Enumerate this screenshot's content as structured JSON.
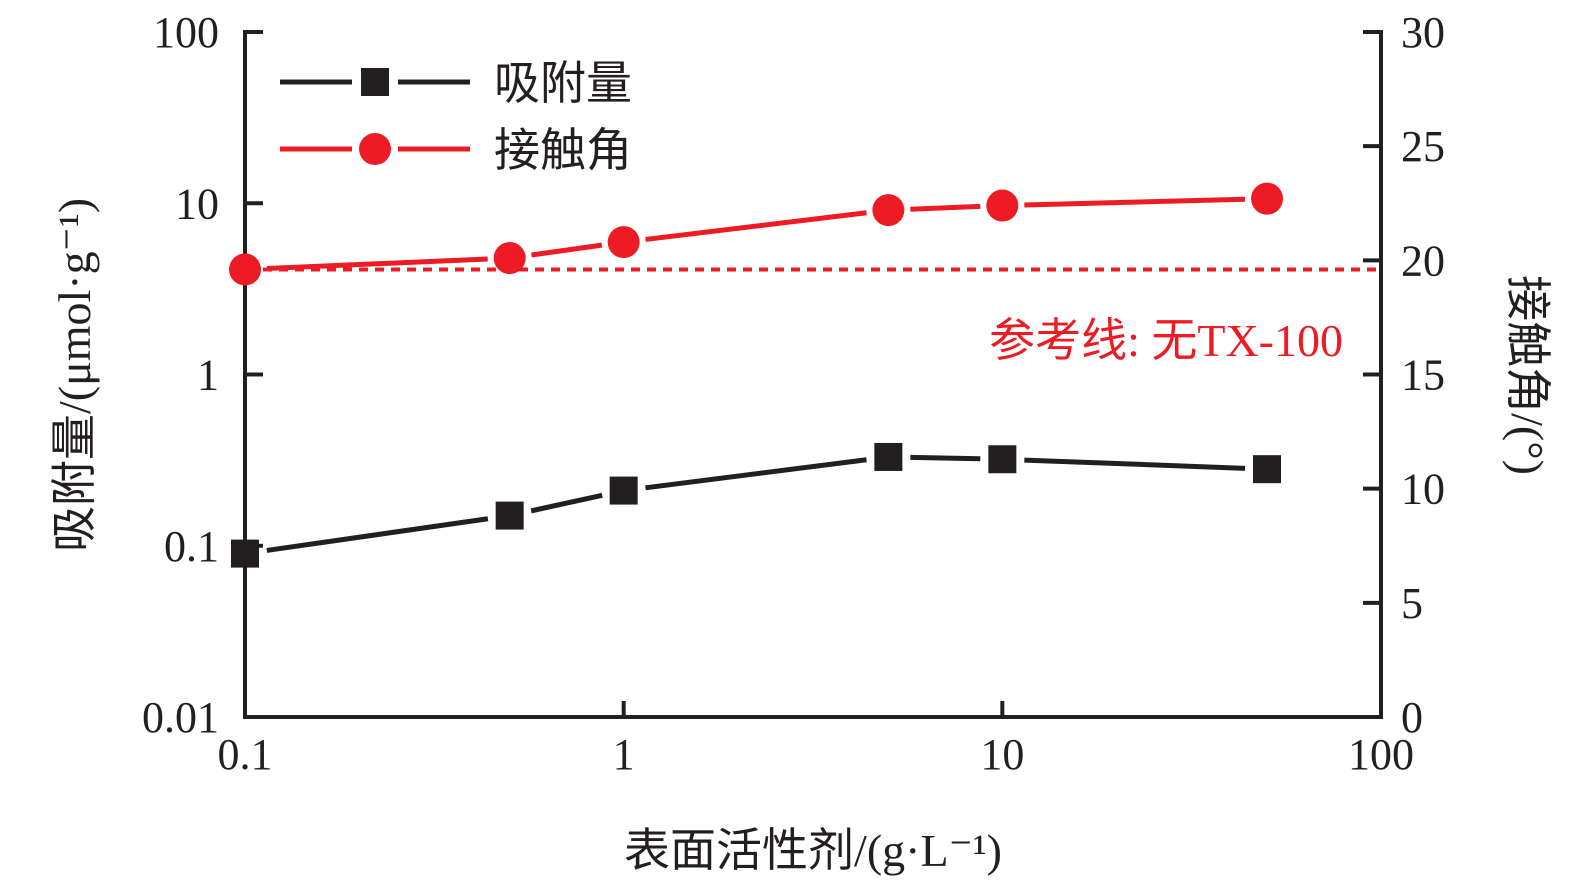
{
  "chart_data": {
    "type": "line",
    "title": "",
    "xlabel": "表面活性剂/(g·L⁻¹)",
    "ylabel_left": "吸附量/(μmol·g⁻¹)",
    "ylabel_right": "接触角/(°)",
    "xscale": "log",
    "xlim": [
      0.1,
      100
    ],
    "ylim_left": [
      0.01,
      100
    ],
    "yscale_left": "log",
    "ylim_right": [
      0,
      30
    ],
    "x_ticks": [
      "0.1",
      "1",
      "10",
      "100"
    ],
    "y_left_ticks": [
      "0.01",
      "0.1",
      "1",
      "10",
      "100"
    ],
    "y_right_ticks": [
      "0",
      "5",
      "10",
      "15",
      "20",
      "25",
      "30"
    ],
    "grid": false,
    "legend_position": "top-left",
    "x": [
      0.1,
      0.5,
      1,
      5,
      10,
      50
    ],
    "series": [
      {
        "name": "吸附量",
        "axis": "left",
        "marker": "square",
        "color": "#231f20",
        "values": [
          0.09,
          0.15,
          0.21,
          0.33,
          0.32,
          0.28
        ]
      },
      {
        "name": "接触角",
        "axis": "right",
        "marker": "circle",
        "color": "#ed1c24",
        "values": [
          19.6,
          20.1,
          20.8,
          22.2,
          22.4,
          22.7
        ]
      }
    ],
    "reference_line": {
      "axis": "right",
      "value": 19.6,
      "style": "dotted",
      "color": "#ed1c24",
      "label": "参考线: 无TX-100"
    }
  }
}
